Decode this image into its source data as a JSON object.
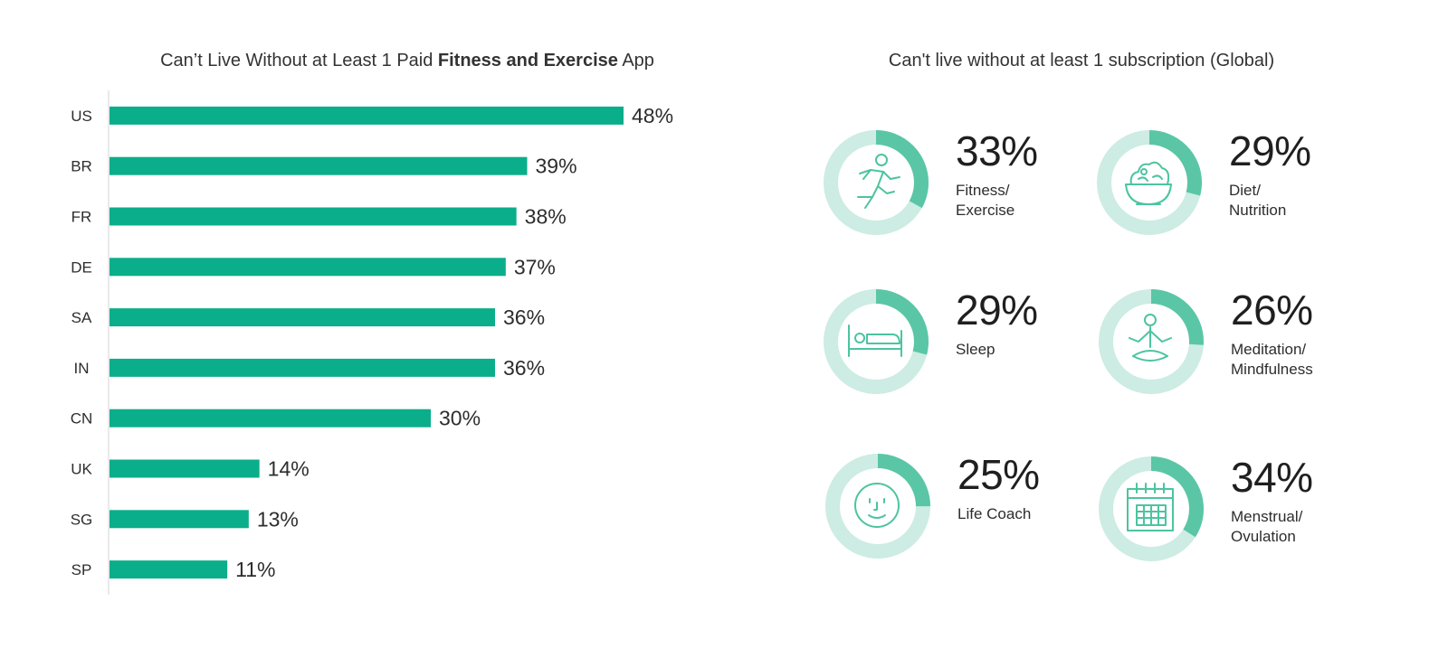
{
  "colors": {
    "bar": "#0aae8a",
    "ring_fill": "#5ac6a6",
    "ring_track": "#cdece3",
    "icon": "#4cc4a0",
    "axis": "#d4d4d4",
    "text": "#2d2d2d"
  },
  "left": {
    "title_pre": "Can’t Live Without at Least 1 Paid ",
    "title_bold": "Fitness and Exercise",
    "title_post": " App"
  },
  "right": {
    "title": "Can't live without at least 1 subscription (Global)",
    "tiles": [
      {
        "value": 33,
        "pct_label": "33%",
        "label_lines": [
          "Fitness/",
          "Exercise"
        ],
        "icon": "runner-icon"
      },
      {
        "value": 29,
        "pct_label": "29%",
        "label_lines": [
          "Diet/",
          "Nutrition"
        ],
        "icon": "salad-bowl-icon"
      },
      {
        "value": 29,
        "pct_label": "29%",
        "label_lines": [
          "Sleep"
        ],
        "icon": "bed-icon"
      },
      {
        "value": 26,
        "pct_label": "26%",
        "label_lines": [
          "Meditation/",
          "Mindfulness"
        ],
        "icon": "meditation-icon"
      },
      {
        "value": 25,
        "pct_label": "25%",
        "label_lines": [
          "Life Coach"
        ],
        "icon": "smiley-face-icon"
      },
      {
        "value": 34,
        "pct_label": "34%",
        "label_lines": [
          "Menstrual/",
          "Ovulation"
        ],
        "icon": "calendar-icon"
      }
    ]
  },
  "chart_data": [
    {
      "type": "bar",
      "orientation": "horizontal",
      "title": "Can’t Live Without at Least 1 Paid Fitness and Exercise App",
      "categories": [
        "US",
        "BR",
        "FR",
        "DE",
        "SA",
        "IN",
        "CN",
        "UK",
        "SG",
        "SP"
      ],
      "values": [
        48,
        39,
        38,
        37,
        36,
        36,
        30,
        14,
        13,
        11
      ],
      "value_labels": [
        "48%",
        "39%",
        "38%",
        "37%",
        "36%",
        "36%",
        "30%",
        "14%",
        "13%",
        "11%"
      ],
      "unit": "%",
      "xlim": [
        0,
        60
      ],
      "grid": false,
      "legend": "none"
    },
    {
      "type": "pie",
      "variant": "donut",
      "title": "Can't live without at least 1 subscription (Global)",
      "categories": [
        "Fitness/Exercise",
        "Diet/Nutrition",
        "Sleep",
        "Meditation/Mindfulness",
        "Life Coach",
        "Menstrual/Ovulation"
      ],
      "values": [
        33,
        29,
        29,
        26,
        25,
        34
      ],
      "unit": "%"
    }
  ]
}
